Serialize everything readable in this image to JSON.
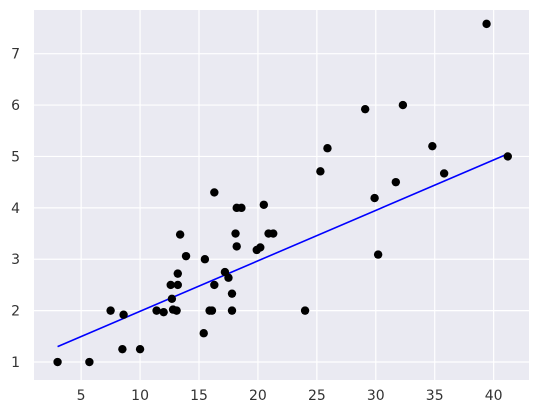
{
  "chart_data": {
    "type": "scatter",
    "title": "",
    "xlabel": "",
    "ylabel": "",
    "xlim": [
      1.0,
      43.0
    ],
    "ylim": [
      0.65,
      7.85
    ],
    "x_ticks": [
      5,
      10,
      15,
      20,
      25,
      30,
      35,
      40
    ],
    "y_ticks": [
      1,
      2,
      3,
      4,
      5,
      6,
      7
    ],
    "grid": true,
    "background": "#eaeaf2",
    "grid_color": "#ffffff",
    "series": [
      {
        "type": "scatter",
        "color": "#000000",
        "points": [
          [
            3.0,
            1.0
          ],
          [
            5.7,
            1.0
          ],
          [
            7.5,
            2.0
          ],
          [
            8.5,
            1.25
          ],
          [
            8.6,
            1.92
          ],
          [
            10.0,
            1.25
          ],
          [
            11.4,
            2.0
          ],
          [
            12.0,
            1.97
          ],
          [
            12.6,
            2.5
          ],
          [
            12.7,
            2.23
          ],
          [
            12.8,
            2.02
          ],
          [
            13.1,
            2.0
          ],
          [
            13.2,
            2.5
          ],
          [
            13.2,
            2.72
          ],
          [
            13.4,
            3.48
          ],
          [
            13.9,
            3.06
          ],
          [
            15.4,
            1.56
          ],
          [
            15.5,
            3.0
          ],
          [
            15.9,
            2.0
          ],
          [
            16.1,
            2.0
          ],
          [
            16.3,
            4.3
          ],
          [
            16.3,
            2.5
          ],
          [
            17.2,
            2.75
          ],
          [
            17.5,
            2.64
          ],
          [
            17.8,
            2.0
          ],
          [
            17.8,
            2.33
          ],
          [
            18.1,
            3.5
          ],
          [
            18.2,
            3.25
          ],
          [
            18.2,
            4.0
          ],
          [
            18.6,
            4.0
          ],
          [
            19.9,
            3.18
          ],
          [
            20.2,
            3.23
          ],
          [
            20.5,
            4.06
          ],
          [
            20.9,
            3.5
          ],
          [
            21.3,
            3.5
          ],
          [
            24.0,
            2.0
          ],
          [
            25.3,
            4.71
          ],
          [
            25.9,
            5.16
          ],
          [
            29.1,
            5.92
          ],
          [
            29.9,
            4.19
          ],
          [
            30.2,
            3.09
          ],
          [
            31.7,
            4.5
          ],
          [
            32.3,
            6.0
          ],
          [
            34.8,
            5.2
          ],
          [
            35.8,
            4.67
          ],
          [
            39.4,
            7.58
          ],
          [
            41.2,
            5.0
          ]
        ]
      },
      {
        "type": "line",
        "color": "#0000ff",
        "points": [
          [
            3.0,
            1.3
          ],
          [
            41.2,
            5.05
          ]
        ]
      }
    ]
  }
}
